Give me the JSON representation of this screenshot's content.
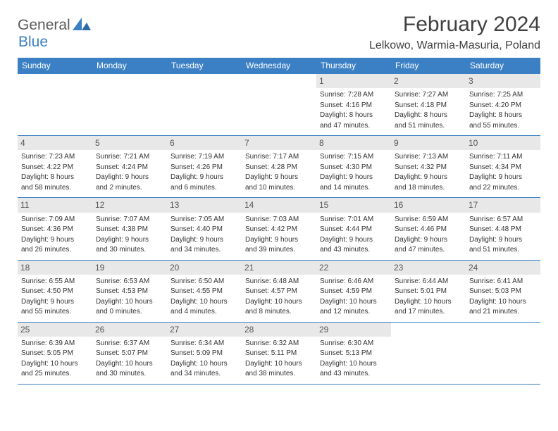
{
  "logo": {
    "part1": "General",
    "part2": "Blue"
  },
  "title": "February 2024",
  "location": "Lelkowo, Warmia-Masuria, Poland",
  "colors": {
    "brand_blue": "#3b7fc4",
    "header_bg": "#3b7fc4",
    "daynum_bg": "#e8e8e8",
    "text_dark": "#404040",
    "text_body": "#333333"
  },
  "typography": {
    "title_fontsize": 30,
    "location_fontsize": 16,
    "dayheader_fontsize": 12,
    "cell_fontsize": 10
  },
  "day_headers": [
    "Sunday",
    "Monday",
    "Tuesday",
    "Wednesday",
    "Thursday",
    "Friday",
    "Saturday"
  ],
  "weeks": [
    [
      {
        "empty": true
      },
      {
        "empty": true
      },
      {
        "empty": true
      },
      {
        "empty": true
      },
      {
        "day": "1",
        "sunrise": "Sunrise: 7:28 AM",
        "sunset": "Sunset: 4:16 PM",
        "daylight1": "Daylight: 8 hours",
        "daylight2": "and 47 minutes."
      },
      {
        "day": "2",
        "sunrise": "Sunrise: 7:27 AM",
        "sunset": "Sunset: 4:18 PM",
        "daylight1": "Daylight: 8 hours",
        "daylight2": "and 51 minutes."
      },
      {
        "day": "3",
        "sunrise": "Sunrise: 7:25 AM",
        "sunset": "Sunset: 4:20 PM",
        "daylight1": "Daylight: 8 hours",
        "daylight2": "and 55 minutes."
      }
    ],
    [
      {
        "day": "4",
        "sunrise": "Sunrise: 7:23 AM",
        "sunset": "Sunset: 4:22 PM",
        "daylight1": "Daylight: 8 hours",
        "daylight2": "and 58 minutes."
      },
      {
        "day": "5",
        "sunrise": "Sunrise: 7:21 AM",
        "sunset": "Sunset: 4:24 PM",
        "daylight1": "Daylight: 9 hours",
        "daylight2": "and 2 minutes."
      },
      {
        "day": "6",
        "sunrise": "Sunrise: 7:19 AM",
        "sunset": "Sunset: 4:26 PM",
        "daylight1": "Daylight: 9 hours",
        "daylight2": "and 6 minutes."
      },
      {
        "day": "7",
        "sunrise": "Sunrise: 7:17 AM",
        "sunset": "Sunset: 4:28 PM",
        "daylight1": "Daylight: 9 hours",
        "daylight2": "and 10 minutes."
      },
      {
        "day": "8",
        "sunrise": "Sunrise: 7:15 AM",
        "sunset": "Sunset: 4:30 PM",
        "daylight1": "Daylight: 9 hours",
        "daylight2": "and 14 minutes."
      },
      {
        "day": "9",
        "sunrise": "Sunrise: 7:13 AM",
        "sunset": "Sunset: 4:32 PM",
        "daylight1": "Daylight: 9 hours",
        "daylight2": "and 18 minutes."
      },
      {
        "day": "10",
        "sunrise": "Sunrise: 7:11 AM",
        "sunset": "Sunset: 4:34 PM",
        "daylight1": "Daylight: 9 hours",
        "daylight2": "and 22 minutes."
      }
    ],
    [
      {
        "day": "11",
        "sunrise": "Sunrise: 7:09 AM",
        "sunset": "Sunset: 4:36 PM",
        "daylight1": "Daylight: 9 hours",
        "daylight2": "and 26 minutes."
      },
      {
        "day": "12",
        "sunrise": "Sunrise: 7:07 AM",
        "sunset": "Sunset: 4:38 PM",
        "daylight1": "Daylight: 9 hours",
        "daylight2": "and 30 minutes."
      },
      {
        "day": "13",
        "sunrise": "Sunrise: 7:05 AM",
        "sunset": "Sunset: 4:40 PM",
        "daylight1": "Daylight: 9 hours",
        "daylight2": "and 34 minutes."
      },
      {
        "day": "14",
        "sunrise": "Sunrise: 7:03 AM",
        "sunset": "Sunset: 4:42 PM",
        "daylight1": "Daylight: 9 hours",
        "daylight2": "and 39 minutes."
      },
      {
        "day": "15",
        "sunrise": "Sunrise: 7:01 AM",
        "sunset": "Sunset: 4:44 PM",
        "daylight1": "Daylight: 9 hours",
        "daylight2": "and 43 minutes."
      },
      {
        "day": "16",
        "sunrise": "Sunrise: 6:59 AM",
        "sunset": "Sunset: 4:46 PM",
        "daylight1": "Daylight: 9 hours",
        "daylight2": "and 47 minutes."
      },
      {
        "day": "17",
        "sunrise": "Sunrise: 6:57 AM",
        "sunset": "Sunset: 4:48 PM",
        "daylight1": "Daylight: 9 hours",
        "daylight2": "and 51 minutes."
      }
    ],
    [
      {
        "day": "18",
        "sunrise": "Sunrise: 6:55 AM",
        "sunset": "Sunset: 4:50 PM",
        "daylight1": "Daylight: 9 hours",
        "daylight2": "and 55 minutes."
      },
      {
        "day": "19",
        "sunrise": "Sunrise: 6:53 AM",
        "sunset": "Sunset: 4:53 PM",
        "daylight1": "Daylight: 10 hours",
        "daylight2": "and 0 minutes."
      },
      {
        "day": "20",
        "sunrise": "Sunrise: 6:50 AM",
        "sunset": "Sunset: 4:55 PM",
        "daylight1": "Daylight: 10 hours",
        "daylight2": "and 4 minutes."
      },
      {
        "day": "21",
        "sunrise": "Sunrise: 6:48 AM",
        "sunset": "Sunset: 4:57 PM",
        "daylight1": "Daylight: 10 hours",
        "daylight2": "and 8 minutes."
      },
      {
        "day": "22",
        "sunrise": "Sunrise: 6:46 AM",
        "sunset": "Sunset: 4:59 PM",
        "daylight1": "Daylight: 10 hours",
        "daylight2": "and 12 minutes."
      },
      {
        "day": "23",
        "sunrise": "Sunrise: 6:44 AM",
        "sunset": "Sunset: 5:01 PM",
        "daylight1": "Daylight: 10 hours",
        "daylight2": "and 17 minutes."
      },
      {
        "day": "24",
        "sunrise": "Sunrise: 6:41 AM",
        "sunset": "Sunset: 5:03 PM",
        "daylight1": "Daylight: 10 hours",
        "daylight2": "and 21 minutes."
      }
    ],
    [
      {
        "day": "25",
        "sunrise": "Sunrise: 6:39 AM",
        "sunset": "Sunset: 5:05 PM",
        "daylight1": "Daylight: 10 hours",
        "daylight2": "and 25 minutes."
      },
      {
        "day": "26",
        "sunrise": "Sunrise: 6:37 AM",
        "sunset": "Sunset: 5:07 PM",
        "daylight1": "Daylight: 10 hours",
        "daylight2": "and 30 minutes."
      },
      {
        "day": "27",
        "sunrise": "Sunrise: 6:34 AM",
        "sunset": "Sunset: 5:09 PM",
        "daylight1": "Daylight: 10 hours",
        "daylight2": "and 34 minutes."
      },
      {
        "day": "28",
        "sunrise": "Sunrise: 6:32 AM",
        "sunset": "Sunset: 5:11 PM",
        "daylight1": "Daylight: 10 hours",
        "daylight2": "and 38 minutes."
      },
      {
        "day": "29",
        "sunrise": "Sunrise: 6:30 AM",
        "sunset": "Sunset: 5:13 PM",
        "daylight1": "Daylight: 10 hours",
        "daylight2": "and 43 minutes."
      },
      {
        "empty": true
      },
      {
        "empty": true
      }
    ]
  ]
}
